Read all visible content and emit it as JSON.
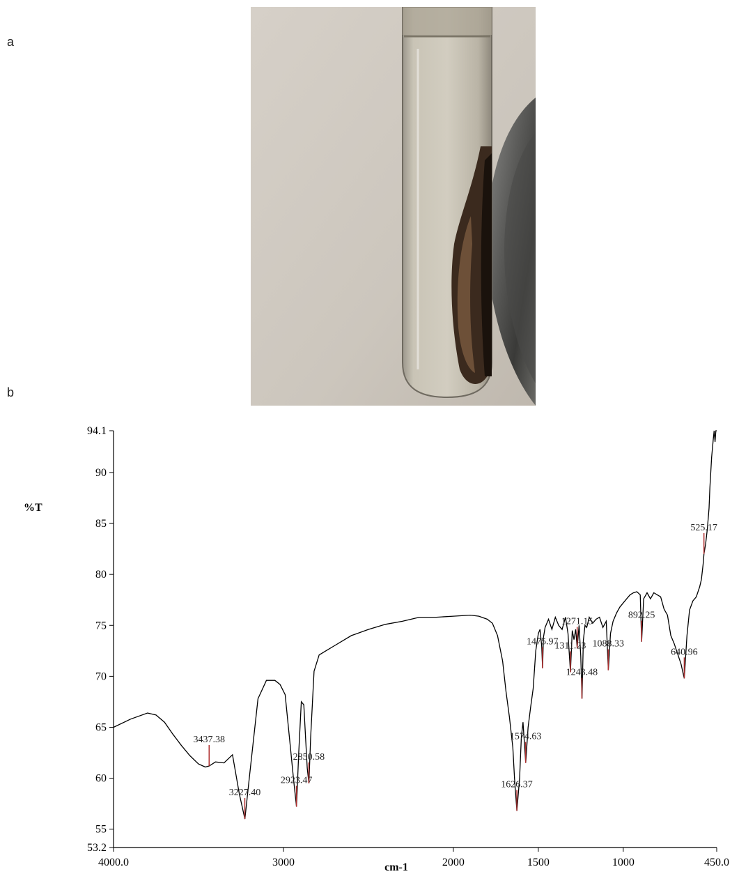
{
  "panels": {
    "a": "a",
    "b": "b"
  },
  "photo": {
    "subject": "test-tube-with-dark-residue"
  },
  "colors": {
    "trace": "#000000",
    "peak_marker": "#b03030",
    "axis": "#000000"
  },
  "chart_data": {
    "type": "line",
    "xlabel": "cm-1",
    "ylabel": "%T",
    "xlim": [
      4000,
      450
    ],
    "ylim": [
      53.2,
      94.1
    ],
    "xaxis_reversed": true,
    "x_ticks": [
      "4000.0",
      "3000",
      "2000",
      "1500",
      "1000",
      "450.0"
    ],
    "x_tick_values": [
      4000,
      3000,
      2000,
      1500,
      1000,
      450
    ],
    "y_ticks": [
      "53.2",
      "55",
      "60",
      "65",
      "70",
      "75",
      "80",
      "85",
      "90",
      "94.1"
    ],
    "y_tick_values": [
      53.2,
      55,
      60,
      65,
      70,
      75,
      80,
      85,
      90,
      94.1
    ],
    "grid": false,
    "series": [
      {
        "x": [
          4000,
          3900,
          3800,
          3750,
          3700,
          3650,
          3600,
          3550,
          3500,
          3460,
          3437,
          3400,
          3350,
          3300,
          3260,
          3227,
          3200,
          3150,
          3100,
          3050,
          3020,
          2990,
          2960,
          2940,
          2923,
          2910,
          2895,
          2880,
          2870,
          2860,
          2850,
          2840,
          2820,
          2790,
          2750,
          2700,
          2600,
          2500,
          2400,
          2300,
          2200,
          2100,
          2000,
          1900,
          1850,
          1800,
          1770,
          1740,
          1710,
          1690,
          1670,
          1650,
          1640,
          1626,
          1610,
          1600,
          1590,
          1574,
          1560,
          1545,
          1530,
          1515,
          1500,
          1490,
          1480,
          1475,
          1470,
          1460,
          1450,
          1440,
          1420,
          1400,
          1380,
          1360,
          1340,
          1325,
          1311,
          1300,
          1290,
          1280,
          1271,
          1260,
          1250,
          1243,
          1235,
          1225,
          1215,
          1200,
          1180,
          1160,
          1140,
          1120,
          1100,
          1088,
          1075,
          1060,
          1040,
          1020,
          1000,
          980,
          960,
          940,
          920,
          900,
          892,
          880,
          860,
          840,
          820,
          800,
          780,
          760,
          740,
          720,
          700,
          680,
          660,
          641,
          625,
          610,
          590,
          570,
          550,
          540,
          530,
          525,
          515,
          505,
          495,
          490,
          480,
          470,
          465,
          460,
          455,
          450
        ],
        "y": [
          65.0,
          65.8,
          66.4,
          66.2,
          65.5,
          64.3,
          63.2,
          62.2,
          61.4,
          61.1,
          61.2,
          61.6,
          61.5,
          62.3,
          58.5,
          56.0,
          60.2,
          67.8,
          69.6,
          69.6,
          69.2,
          68.2,
          63.2,
          59.8,
          57.2,
          62.5,
          67.5,
          67.2,
          64.0,
          61.0,
          59.5,
          64.0,
          70.5,
          72.1,
          72.5,
          73.0,
          74.0,
          74.6,
          75.1,
          75.4,
          75.8,
          75.8,
          75.9,
          76.0,
          75.9,
          75.6,
          75.2,
          74.0,
          71.5,
          68.5,
          66.0,
          63.0,
          60.0,
          56.8,
          60.0,
          64.0,
          65.5,
          61.5,
          65.0,
          67.0,
          68.8,
          72.5,
          74.2,
          74.6,
          73.0,
          70.8,
          73.8,
          74.8,
          75.2,
          75.6,
          74.6,
          75.8,
          75.0,
          74.6,
          75.8,
          74.2,
          70.4,
          74.5,
          73.6,
          74.6,
          72.8,
          75.0,
          72.0,
          67.8,
          73.5,
          75.0,
          74.8,
          75.8,
          75.2,
          75.6,
          75.8,
          74.8,
          75.4,
          70.6,
          74.2,
          75.4,
          76.2,
          76.8,
          77.2,
          77.6,
          78.0,
          78.2,
          78.3,
          78.0,
          73.4,
          77.6,
          78.2,
          77.6,
          78.2,
          78.0,
          77.8,
          76.6,
          76.0,
          74.0,
          73.2,
          72.2,
          71.2,
          69.8,
          74.0,
          76.5,
          77.4,
          77.8,
          78.8,
          79.5,
          81.0,
          82.0,
          83.0,
          84.5,
          86.5,
          88.5,
          91.5,
          93.3,
          94.1,
          93.0,
          94.1,
          94.1
        ]
      }
    ],
    "peaks": [
      {
        "label": "3437.38",
        "x": 3437.38,
        "y": 61.2
      },
      {
        "label": "3227.40",
        "x": 3227.4,
        "y": 56.0
      },
      {
        "label": "2923.47",
        "x": 2923.47,
        "y": 57.2
      },
      {
        "label": "2850.58",
        "x": 2850.58,
        "y": 59.5
      },
      {
        "label": "1626.37",
        "x": 1626.37,
        "y": 56.8
      },
      {
        "label": "1574.63",
        "x": 1574.63,
        "y": 61.5
      },
      {
        "label": "1475.97",
        "x": 1475.97,
        "y": 70.8
      },
      {
        "label": "1311.23",
        "x": 1311.23,
        "y": 70.4
      },
      {
        "label": "1271.15",
        "x": 1271.15,
        "y": 72.8
      },
      {
        "label": "1243.48",
        "x": 1243.48,
        "y": 67.8
      },
      {
        "label": "1088.33",
        "x": 1088.33,
        "y": 70.6
      },
      {
        "label": "892.25",
        "x": 892.25,
        "y": 73.4
      },
      {
        "label": "640.96",
        "x": 640.96,
        "y": 69.8
      },
      {
        "label": "525.17",
        "x": 525.17,
        "y": 82.0
      }
    ]
  }
}
